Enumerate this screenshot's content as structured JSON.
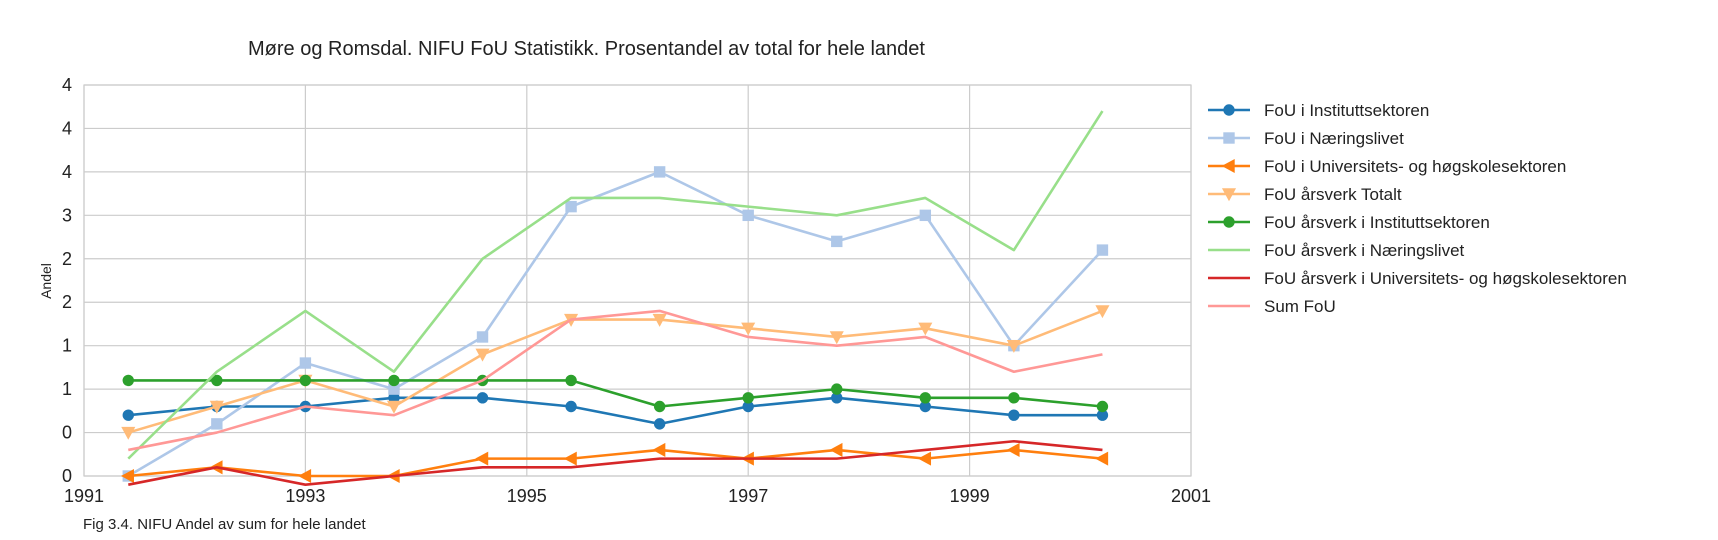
{
  "chart_data": {
    "type": "line",
    "title": "Møre og Romsdal. NIFU FoU Statistikk. Prosentandel av total for hele landet",
    "xlabel": "",
    "ylabel": "Andel",
    "caption": "Fig 3.4. NIFU Andel av sum for hele landet",
    "xlim": [
      1991,
      2001
    ],
    "ylim": [
      0,
      4.5
    ],
    "x_ticks": [
      1991,
      1993,
      1995,
      1997,
      1999,
      2001
    ],
    "x_tick_labels": [
      "1991",
      "1993",
      "1995",
      "1997",
      "1999",
      "2001"
    ],
    "y_ticks": [
      0,
      0.5,
      1,
      1.5,
      2,
      2.5,
      3,
      3.5,
      4,
      4.5
    ],
    "y_tick_labels": [
      "0",
      "0",
      "1",
      "1",
      "2",
      "2",
      "3",
      "4",
      "4",
      "4"
    ],
    "grid": true,
    "legend_position": "right",
    "x": [
      1991.4,
      1992.2,
      1993.0,
      1993.8,
      1994.6,
      1995.4,
      1996.2,
      1997.0,
      1997.8,
      1998.6,
      1999.4,
      2000.2
    ],
    "series": [
      {
        "name": "FoU i Instituttsektoren",
        "color": "#1f77b4",
        "marker": "circle",
        "values": [
          0.7,
          0.8,
          0.8,
          0.9,
          0.9,
          0.8,
          0.6,
          0.8,
          0.9,
          0.8,
          0.7,
          0.7
        ]
      },
      {
        "name": "FoU i Næringslivet",
        "color": "#aec7e8",
        "marker": "square",
        "values": [
          0.0,
          0.6,
          1.3,
          1.0,
          1.6,
          3.1,
          3.5,
          3.0,
          2.7,
          3.0,
          1.5,
          2.6
        ]
      },
      {
        "name": "FoU i Universitets- og høgskolesektoren",
        "color": "#ff7f0e",
        "marker": "triangle-left",
        "values": [
          0.0,
          0.1,
          0.0,
          0.0,
          0.2,
          0.2,
          0.3,
          0.2,
          0.3,
          0.2,
          0.3,
          0.2
        ]
      },
      {
        "name": "FoU årsverk Totalt",
        "color": "#ffbb78",
        "marker": "triangle-down",
        "values": [
          0.5,
          0.8,
          1.1,
          0.8,
          1.4,
          1.8,
          1.8,
          1.7,
          1.6,
          1.7,
          1.5,
          1.9
        ]
      },
      {
        "name": "FoU årsverk i Instituttsektoren",
        "color": "#2ca02c",
        "marker": "circle",
        "values": [
          1.1,
          1.1,
          1.1,
          1.1,
          1.1,
          1.1,
          0.8,
          0.9,
          1.0,
          0.9,
          0.9,
          0.8
        ]
      },
      {
        "name": "FoU årsverk i Næringslivet",
        "color": "#98df8a",
        "marker": "none",
        "values": [
          0.2,
          1.2,
          1.9,
          1.2,
          2.5,
          3.2,
          3.2,
          3.1,
          3.0,
          3.2,
          2.6,
          4.2
        ]
      },
      {
        "name": "FoU årsverk i Universitets- og høgskolesektoren",
        "color": "#d62728",
        "marker": "none",
        "values": [
          -0.1,
          0.1,
          -0.1,
          0.0,
          0.1,
          0.1,
          0.2,
          0.2,
          0.2,
          0.3,
          0.4,
          0.3
        ]
      },
      {
        "name": "Sum FoU",
        "color": "#ff9896",
        "marker": "none",
        "values": [
          0.3,
          0.5,
          0.8,
          0.7,
          1.1,
          1.8,
          1.9,
          1.6,
          1.5,
          1.6,
          1.2,
          1.4
        ]
      }
    ]
  }
}
